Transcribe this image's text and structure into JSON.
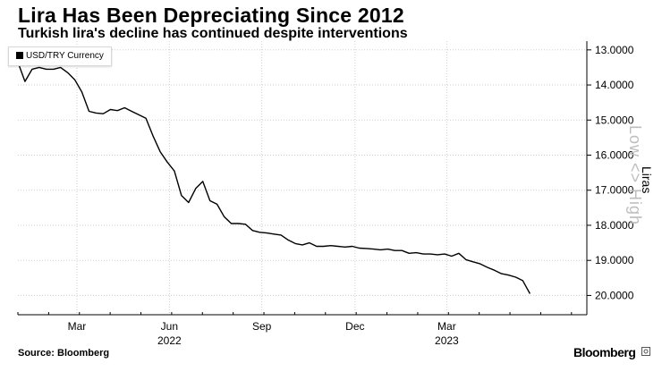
{
  "chart_data": {
    "type": "line",
    "title": "Lira Has Been Depreciating Since 2012",
    "subtitle": "Turkish lira's decline has continued despite interventions",
    "ylabel": "Liras",
    "xlabel": "",
    "legend": "USD/TRY Currency",
    "legend_position": "top-left",
    "ylim": [
      12.75,
      20.55
    ],
    "y_inverted": true,
    "yticks": [
      {
        "value": 13,
        "label": "13.0000"
      },
      {
        "value": 14,
        "label": "14.0000"
      },
      {
        "value": 15,
        "label": "15.0000"
      },
      {
        "value": 16,
        "label": "16.0000"
      },
      {
        "value": 17,
        "label": "17.0000"
      },
      {
        "value": 18,
        "label": "18.0000"
      },
      {
        "value": 19,
        "label": "19.0000"
      },
      {
        "value": 20,
        "label": "20.0000"
      }
    ],
    "x_range": [
      0,
      80
    ],
    "xticks": [
      {
        "value": 8.3,
        "label": "Mar"
      },
      {
        "value": 21.3,
        "label": "Jun"
      },
      {
        "value": 34.3,
        "label": "Sep"
      },
      {
        "value": 47.4,
        "label": "Dec"
      },
      {
        "value": 60.3,
        "label": "Mar"
      }
    ],
    "x_year_labels": [
      {
        "value": 21.3,
        "label": "2022"
      },
      {
        "value": 60.3,
        "label": "2023"
      }
    ],
    "grid": true,
    "series": [
      {
        "name": "USD/TRY Currency",
        "x": [
          0,
          1,
          2,
          3,
          4,
          5,
          6,
          7,
          8,
          9,
          10,
          11,
          12,
          13,
          14,
          15,
          16,
          17,
          18,
          19,
          20,
          21,
          22,
          23,
          24,
          25,
          26,
          27,
          28,
          29,
          30,
          31,
          32,
          33,
          34,
          35,
          36,
          37,
          38,
          39,
          40,
          41,
          42,
          43,
          44,
          45,
          46,
          47,
          48,
          49,
          50,
          51,
          52,
          53,
          54,
          55,
          56,
          57,
          58,
          59,
          60,
          61,
          62,
          63,
          64,
          65,
          66,
          67,
          68,
          69,
          70,
          71,
          72
        ],
        "values": [
          13.35,
          13.9,
          13.55,
          13.5,
          13.55,
          13.55,
          13.5,
          13.65,
          13.85,
          14.2,
          14.75,
          14.8,
          14.82,
          14.7,
          14.73,
          14.65,
          14.75,
          14.85,
          14.95,
          15.45,
          15.9,
          16.2,
          16.45,
          17.15,
          17.35,
          16.95,
          16.75,
          17.3,
          17.4,
          17.75,
          17.95,
          17.95,
          17.97,
          18.15,
          18.2,
          18.22,
          18.25,
          18.28,
          18.42,
          18.52,
          18.56,
          18.5,
          18.6,
          18.6,
          18.58,
          18.6,
          18.62,
          18.6,
          18.65,
          18.66,
          18.68,
          18.7,
          18.68,
          18.72,
          18.72,
          18.8,
          18.78,
          18.82,
          18.82,
          18.84,
          18.82,
          18.88,
          18.8,
          18.98,
          19.04,
          19.1,
          19.2,
          19.28,
          19.38,
          19.42,
          19.48,
          19.58,
          19.95
        ]
      }
    ]
  },
  "watermark": "Low <> High",
  "footer": {
    "source": "Source: Bloomberg",
    "brand": "Bloomberg"
  },
  "colors": {
    "line": "#000000",
    "grid": "#cfcfcf",
    "axis": "#000000"
  }
}
